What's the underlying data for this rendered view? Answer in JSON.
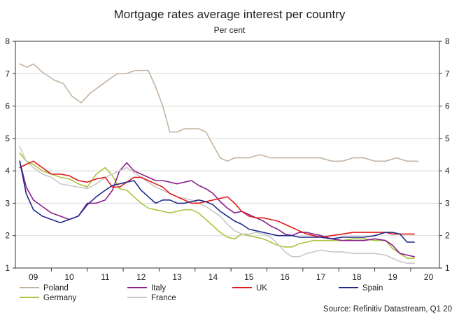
{
  "chart_data": {
    "type": "line",
    "title": "Mortgage rates average interest per country",
    "subtitle": "Per cent",
    "xlabel": "",
    "ylabel": "",
    "ylim": [
      1,
      8
    ],
    "yticks": [
      1,
      2,
      3,
      4,
      5,
      6,
      7,
      8
    ],
    "xlim": [
      2008.5,
      2020.3
    ],
    "xticks": [
      {
        "label": "09",
        "pos": 2009.0
      },
      {
        "label": "10",
        "pos": 2010.0
      },
      {
        "label": "11",
        "pos": 2011.0
      },
      {
        "label": "12",
        "pos": 2012.0
      },
      {
        "label": "13",
        "pos": 2013.0
      },
      {
        "label": "14",
        "pos": 2014.0
      },
      {
        "label": "15",
        "pos": 2015.0
      },
      {
        "label": "16",
        "pos": 2016.0
      },
      {
        "label": "17",
        "pos": 2017.0
      },
      {
        "label": "18",
        "pos": 2018.0
      },
      {
        "label": "19",
        "pos": 2019.0
      },
      {
        "label": "20",
        "pos": 2020.0
      }
    ],
    "grid": true,
    "legend_position": "bottom",
    "series": [
      {
        "name": "Poland",
        "color": "#c4b3a2",
        "x": [
          2008.62,
          2008.83,
          2009.0,
          2009.25,
          2009.58,
          2009.83,
          2010.08,
          2010.33,
          2010.58,
          2010.83,
          2011.08,
          2011.33,
          2011.58,
          2011.83,
          2012.0,
          2012.2,
          2012.4,
          2012.6,
          2012.8,
          2013.0,
          2013.2,
          2013.4,
          2013.6,
          2013.8,
          2014.0,
          2014.2,
          2014.4,
          2014.6,
          2014.8,
          2015.0,
          2015.3,
          2015.6,
          2015.9,
          2016.1,
          2016.4,
          2016.7,
          2017.0,
          2017.3,
          2017.6,
          2017.9,
          2018.2,
          2018.5,
          2018.8,
          2019.1,
          2019.4,
          2019.7
        ],
        "values": [
          7.3,
          7.2,
          7.3,
          7.05,
          6.8,
          6.7,
          6.3,
          6.1,
          6.4,
          6.6,
          6.8,
          7.0,
          7.0,
          7.1,
          7.1,
          7.1,
          6.6,
          6.0,
          5.2,
          5.2,
          5.3,
          5.3,
          5.3,
          5.2,
          4.8,
          4.4,
          4.3,
          4.4,
          4.4,
          4.4,
          4.5,
          4.4,
          4.4,
          4.4,
          4.4,
          4.4,
          4.4,
          4.3,
          4.3,
          4.4,
          4.4,
          4.3,
          4.3,
          4.4,
          4.3,
          4.3
        ]
      },
      {
        "name": "Germany",
        "color": "#a8c63c",
        "x": [
          2008.62,
          2008.8,
          2009.0,
          2009.25,
          2009.5,
          2009.75,
          2010.0,
          2010.25,
          2010.5,
          2010.75,
          2011.0,
          2011.2,
          2011.4,
          2011.6,
          2011.8,
          2012.0,
          2012.2,
          2012.4,
          2012.6,
          2012.8,
          2013.0,
          2013.2,
          2013.4,
          2013.6,
          2013.8,
          2014.0,
          2014.2,
          2014.4,
          2014.6,
          2014.8,
          2015.0,
          2015.2,
          2015.4,
          2015.6,
          2015.8,
          2016.0,
          2016.2,
          2016.4,
          2016.6,
          2016.8,
          2017.0,
          2017.3,
          2017.6,
          2017.9,
          2018.2,
          2018.5,
          2018.8,
          2019.0,
          2019.2,
          2019.4,
          2019.6
        ],
        "values": [
          4.55,
          4.3,
          4.2,
          4.0,
          3.9,
          3.8,
          3.75,
          3.6,
          3.5,
          3.9,
          4.1,
          3.85,
          3.45,
          3.4,
          3.2,
          3.0,
          2.85,
          2.8,
          2.75,
          2.7,
          2.75,
          2.8,
          2.8,
          2.7,
          2.5,
          2.3,
          2.1,
          1.95,
          1.9,
          2.05,
          2.0,
          1.95,
          1.9,
          1.8,
          1.7,
          1.65,
          1.65,
          1.75,
          1.8,
          1.85,
          1.85,
          1.85,
          1.85,
          1.9,
          1.9,
          1.85,
          1.85,
          1.6,
          1.45,
          1.3,
          1.3
        ]
      },
      {
        "name": "Italy",
        "color": "#8a1f8a",
        "x": [
          2008.62,
          2008.8,
          2009.0,
          2009.25,
          2009.5,
          2009.75,
          2010.0,
          2010.25,
          2010.5,
          2010.75,
          2011.0,
          2011.2,
          2011.4,
          2011.6,
          2011.8,
          2012.0,
          2012.2,
          2012.4,
          2012.6,
          2012.8,
          2013.0,
          2013.2,
          2013.4,
          2013.6,
          2013.8,
          2014.0,
          2014.2,
          2014.4,
          2014.6,
          2014.8,
          2015.0,
          2015.2,
          2015.4,
          2015.6,
          2015.8,
          2016.0,
          2016.2,
          2016.4,
          2016.6,
          2016.8,
          2017.0,
          2017.3,
          2017.6,
          2017.9,
          2018.2,
          2018.5,
          2018.8,
          2019.0,
          2019.2,
          2019.4,
          2019.6
        ],
        "values": [
          4.3,
          3.5,
          3.1,
          2.9,
          2.7,
          2.6,
          2.5,
          2.6,
          3.0,
          3.0,
          3.1,
          3.4,
          4.0,
          4.25,
          4.0,
          3.9,
          3.8,
          3.7,
          3.7,
          3.65,
          3.6,
          3.65,
          3.7,
          3.55,
          3.45,
          3.3,
          3.05,
          2.85,
          2.7,
          2.75,
          2.65,
          2.55,
          2.45,
          2.3,
          2.2,
          2.05,
          2.0,
          2.1,
          2.1,
          2.05,
          2.0,
          1.9,
          1.85,
          1.85,
          1.85,
          1.9,
          1.85,
          1.7,
          1.45,
          1.4,
          1.35
        ]
      },
      {
        "name": "France",
        "color": "#c8c8c8",
        "x": [
          2008.62,
          2008.8,
          2009.0,
          2009.25,
          2009.5,
          2009.75,
          2010.0,
          2010.25,
          2010.5,
          2010.75,
          2011.0,
          2011.2,
          2011.4,
          2011.6,
          2011.8,
          2012.0,
          2012.2,
          2012.4,
          2012.6,
          2012.8,
          2013.0,
          2013.2,
          2013.4,
          2013.6,
          2013.8,
          2014.0,
          2014.2,
          2014.4,
          2014.6,
          2014.8,
          2015.0,
          2015.2,
          2015.4,
          2015.6,
          2015.8,
          2016.0,
          2016.2,
          2016.4,
          2016.6,
          2016.8,
          2017.0,
          2017.3,
          2017.6,
          2017.9,
          2018.2,
          2018.5,
          2018.8,
          2019.0,
          2019.2,
          2019.4,
          2019.6
        ],
        "values": [
          4.75,
          4.3,
          4.1,
          3.9,
          3.8,
          3.6,
          3.55,
          3.5,
          3.45,
          3.6,
          3.8,
          3.9,
          4.0,
          4.1,
          3.95,
          3.8,
          3.65,
          3.5,
          3.4,
          3.3,
          3.2,
          3.15,
          3.1,
          3.0,
          2.9,
          2.75,
          2.6,
          2.35,
          2.15,
          2.05,
          2.05,
          2.1,
          2.05,
          1.95,
          1.75,
          1.5,
          1.35,
          1.35,
          1.45,
          1.5,
          1.55,
          1.5,
          1.5,
          1.45,
          1.45,
          1.45,
          1.4,
          1.3,
          1.2,
          1.15,
          1.15
        ]
      },
      {
        "name": "UK",
        "color": "#e01b1b",
        "x": [
          2008.62,
          2008.8,
          2009.0,
          2009.25,
          2009.5,
          2009.75,
          2010.0,
          2010.25,
          2010.5,
          2010.75,
          2011.0,
          2011.2,
          2011.4,
          2011.6,
          2011.8,
          2012.0,
          2012.2,
          2012.4,
          2012.6,
          2012.8,
          2013.0,
          2013.2,
          2013.4,
          2013.6,
          2013.8,
          2014.0,
          2014.2,
          2014.4,
          2014.6,
          2014.8,
          2015.0,
          2015.2,
          2015.4,
          2015.6,
          2015.8,
          2016.0,
          2016.2,
          2016.4,
          2016.6,
          2016.8,
          2017.0,
          2017.3,
          2017.6,
          2017.9,
          2018.2,
          2018.5,
          2018.8,
          2019.0,
          2019.2,
          2019.4,
          2019.6
        ],
        "values": [
          4.1,
          4.2,
          4.3,
          4.1,
          3.9,
          3.9,
          3.85,
          3.7,
          3.65,
          3.75,
          3.8,
          3.5,
          3.5,
          3.65,
          3.8,
          3.8,
          3.7,
          3.6,
          3.5,
          3.3,
          3.2,
          3.1,
          3.0,
          3.0,
          3.05,
          3.1,
          3.15,
          3.2,
          3.0,
          2.75,
          2.6,
          2.55,
          2.55,
          2.5,
          2.45,
          2.35,
          2.25,
          2.15,
          2.05,
          2.0,
          1.95,
          2.0,
          2.05,
          2.1,
          2.1,
          2.1,
          2.1,
          2.05,
          2.05,
          2.05,
          2.05
        ]
      },
      {
        "name": "Spain",
        "color": "#1f2a8a",
        "x": [
          2008.62,
          2008.8,
          2009.0,
          2009.25,
          2009.5,
          2009.75,
          2010.0,
          2010.25,
          2010.5,
          2010.75,
          2011.0,
          2011.2,
          2011.4,
          2011.6,
          2011.8,
          2012.0,
          2012.2,
          2012.4,
          2012.6,
          2012.8,
          2013.0,
          2013.2,
          2013.4,
          2013.6,
          2013.8,
          2014.0,
          2014.2,
          2014.4,
          2014.6,
          2014.8,
          2015.0,
          2015.2,
          2015.4,
          2015.6,
          2015.8,
          2016.0,
          2016.2,
          2016.4,
          2016.6,
          2016.8,
          2017.0,
          2017.3,
          2017.6,
          2017.9,
          2018.2,
          2018.5,
          2018.8,
          2019.0,
          2019.2,
          2019.4,
          2019.6
        ],
        "values": [
          4.3,
          3.3,
          2.8,
          2.6,
          2.5,
          2.4,
          2.5,
          2.6,
          2.95,
          3.2,
          3.4,
          3.55,
          3.6,
          3.65,
          3.7,
          3.4,
          3.2,
          3.0,
          3.1,
          3.1,
          3.0,
          3.0,
          3.05,
          3.1,
          3.05,
          2.95,
          2.75,
          2.6,
          2.45,
          2.35,
          2.2,
          2.15,
          2.1,
          2.05,
          2.0,
          2.0,
          2.0,
          1.95,
          1.95,
          1.95,
          1.95,
          1.9,
          1.95,
          1.95,
          1.95,
          2.0,
          2.1,
          2.1,
          2.05,
          1.8,
          1.8
        ]
      }
    ],
    "legend": [
      {
        "name": "Poland"
      },
      {
        "name": "Italy"
      },
      {
        "name": "UK"
      },
      {
        "name": "Spain"
      },
      {
        "name": "Germany"
      },
      {
        "name": "France"
      }
    ],
    "source": "Source: Refinitiv Datastream, Q1 20"
  }
}
